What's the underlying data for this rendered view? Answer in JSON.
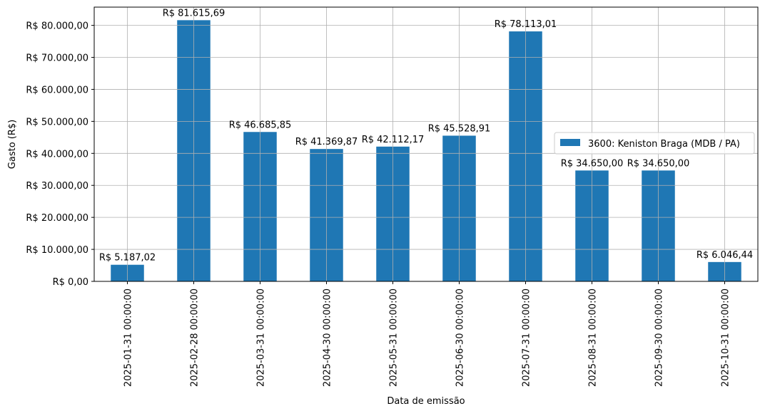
{
  "chart_data": {
    "type": "bar",
    "title": "",
    "xlabel": "Data de emissão",
    "ylabel": "Gasto (R$)",
    "categories": [
      "2025-01-31 00:00:00",
      "2025-02-28 00:00:00",
      "2025-03-31 00:00:00",
      "2025-04-30 00:00:00",
      "2025-05-31 00:00:00",
      "2025-06-30 00:00:00",
      "2025-07-31 00:00:00",
      "2025-08-31 00:00:00",
      "2025-09-30 00:00:00",
      "2025-10-31 00:00:00"
    ],
    "series": [
      {
        "name": "3600: Keniston Braga (MDB / PA)",
        "color": "#1f77b4",
        "values": [
          5187.02,
          81615.69,
          46685.85,
          41369.87,
          42112.17,
          45528.91,
          78113.01,
          34650.0,
          34650.0,
          6046.44
        ]
      }
    ],
    "data_labels": [
      "R$ 5.187,02",
      "R$ 81.615,69",
      "R$ 46.685,85",
      "R$ 41.369,87",
      "R$ 42.112,17",
      "R$ 45.528,91",
      "R$ 78.113,01",
      "R$ 34.650,00",
      "R$ 34.650,00",
      "R$ 6.046,44"
    ],
    "yticks": [
      0,
      10000,
      20000,
      30000,
      40000,
      50000,
      60000,
      70000,
      80000
    ],
    "ytick_labels": [
      "R$ 0,00",
      "R$ 10.000,00",
      "R$ 20.000,00",
      "R$ 30.000,00",
      "R$ 40.000,00",
      "R$ 50.000,00",
      "R$ 60.000,00",
      "R$ 70.000,00",
      "R$ 80.000,00"
    ],
    "ylim": [
      0,
      85700
    ],
    "grid": true,
    "legend_position": "center-right"
  }
}
